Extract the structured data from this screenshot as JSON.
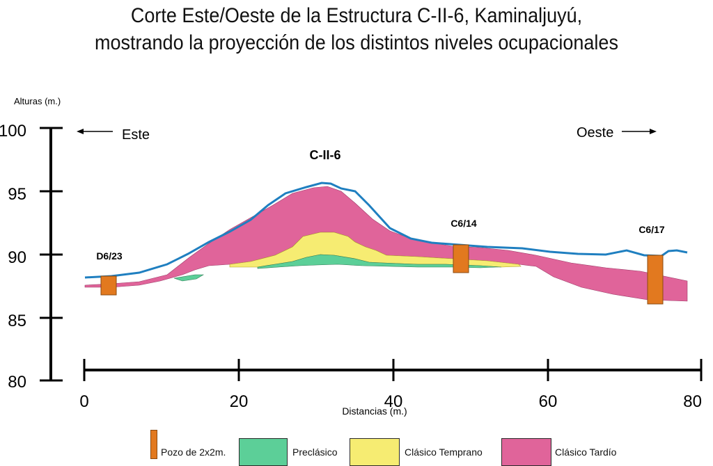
{
  "title": {
    "line1": "Corte Este/Oeste de la Estructura C-II-6, Kaminaljuyú,",
    "line2": "mostrando la proyección de los distintos niveles ocupacionales"
  },
  "axes": {
    "y_label": "Alturas (m.)",
    "y_ticks": [
      "100",
      "95",
      "90",
      "85",
      "80"
    ],
    "x_label": "Distancias (m.)",
    "x_ticks": [
      "0",
      "20",
      "40",
      "60",
      "80"
    ]
  },
  "directions": {
    "east": "Este",
    "west": "Oeste"
  },
  "structure_label": "C-II-6",
  "pits": [
    "D6/23",
    "C6/14",
    "C6/17"
  ],
  "legend": {
    "pit": "Pozo de 2x2m.",
    "preclassic": "Preclásico",
    "early_classic": "Clásico Temprano",
    "late_classic": "Clásico Tardío"
  },
  "colors": {
    "surface_line": "#1f7fc0",
    "preclassic": "#5ccf98",
    "early_classic": "#f6ec72",
    "late_classic": "#e0649a",
    "pit": "#e2791f",
    "axis": "#000000"
  }
}
